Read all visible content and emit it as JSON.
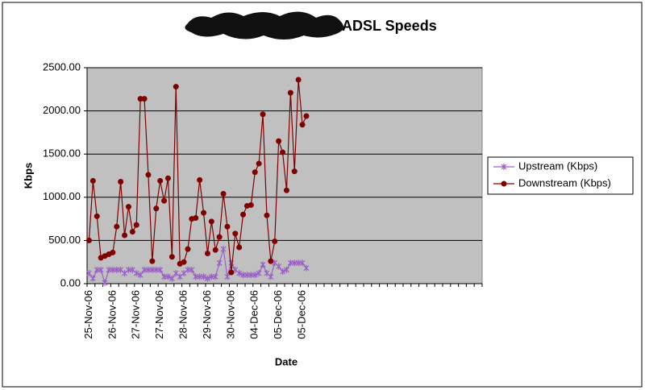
{
  "chart_data": {
    "type": "line",
    "title": "ADSL Speeds",
    "x_label": "Date",
    "y_label": "Kbps",
    "categories": [
      "25-Nov-06",
      null,
      null,
      null,
      null,
      null,
      "26-Nov-06",
      null,
      null,
      null,
      null,
      null,
      "27-Nov-06",
      null,
      null,
      null,
      null,
      null,
      "27-Nov-06",
      null,
      null,
      null,
      null,
      null,
      "28-Nov-06",
      null,
      null,
      null,
      null,
      null,
      "29-Nov-06",
      null,
      null,
      null,
      null,
      null,
      "30-Nov-06",
      null,
      null,
      null,
      null,
      null,
      "04-Dec-06",
      null,
      null,
      null,
      null,
      null,
      "05-Dec-06",
      null,
      null,
      null,
      null,
      null,
      "05-Dec-06",
      null,
      null,
      null,
      null,
      null,
      null,
      null,
      null,
      null,
      null,
      null,
      null,
      null,
      null,
      null,
      null,
      null,
      null,
      null,
      null,
      null,
      null,
      null,
      null,
      null,
      null,
      null,
      null,
      null,
      null,
      null,
      null,
      null,
      null,
      null,
      null,
      null,
      null,
      null,
      null,
      null,
      null,
      null,
      null,
      null
    ],
    "series": [
      {
        "name": "Upstream (Kbps)",
        "color": "#9a5fc8",
        "marker": "star",
        "values": [
          120,
          60,
          160,
          160,
          10,
          160,
          160,
          160,
          160,
          120,
          160,
          160,
          120,
          100,
          160,
          160,
          160,
          160,
          160,
          80,
          80,
          60,
          120,
          80,
          120,
          160,
          160,
          80,
          80,
          80,
          60,
          80,
          80,
          240,
          400,
          80,
          240,
          160,
          120,
          100,
          100,
          100,
          100,
          120,
          220,
          120,
          80,
          240,
          200,
          140,
          160,
          240,
          240,
          240,
          240,
          180,
          null,
          null,
          null,
          null,
          null,
          null,
          null,
          null,
          null,
          null,
          null,
          null,
          null,
          null,
          null,
          null,
          null,
          null,
          null,
          null,
          null,
          null,
          null,
          null,
          null,
          null,
          null,
          null,
          null,
          null,
          null,
          null,
          null,
          null,
          null,
          null,
          null,
          null,
          null,
          null,
          null,
          null,
          null,
          null
        ]
      },
      {
        "name": "Downstream (Kbps)",
        "color": "#800000",
        "marker": "circle",
        "values": [
          500,
          1190,
          780,
          300,
          320,
          340,
          360,
          660,
          1180,
          560,
          890,
          600,
          680,
          2140,
          2140,
          1260,
          260,
          870,
          1190,
          960,
          1220,
          310,
          2280,
          230,
          250,
          400,
          750,
          760,
          1200,
          820,
          350,
          720,
          390,
          540,
          1040,
          660,
          130,
          580,
          420,
          800,
          900,
          910,
          1290,
          1390,
          1960,
          790,
          260,
          490,
          1650,
          1520,
          1080,
          2210,
          1300,
          2360,
          1840,
          1940,
          null,
          null,
          null,
          null,
          null,
          null,
          null,
          null,
          null,
          null,
          null,
          null,
          null,
          null,
          null,
          null,
          null,
          null,
          null,
          null,
          null,
          null,
          null,
          null,
          null,
          null,
          null,
          null,
          null,
          null,
          null,
          null,
          null,
          null,
          null,
          null,
          null,
          null,
          null,
          null,
          null,
          null,
          null,
          null
        ]
      }
    ],
    "ylim": [
      0,
      2500
    ],
    "yticks": [
      {
        "value": 0,
        "label": "0.00"
      },
      {
        "value": 500,
        "label": "500.00"
      },
      {
        "value": 1000,
        "label": "1000.00"
      },
      {
        "value": 1500,
        "label": "1500.00"
      },
      {
        "value": 2000,
        "label": "2000.00"
      },
      {
        "value": 2500,
        "label": "2500.00"
      }
    ],
    "grid": true,
    "legend": "right"
  }
}
